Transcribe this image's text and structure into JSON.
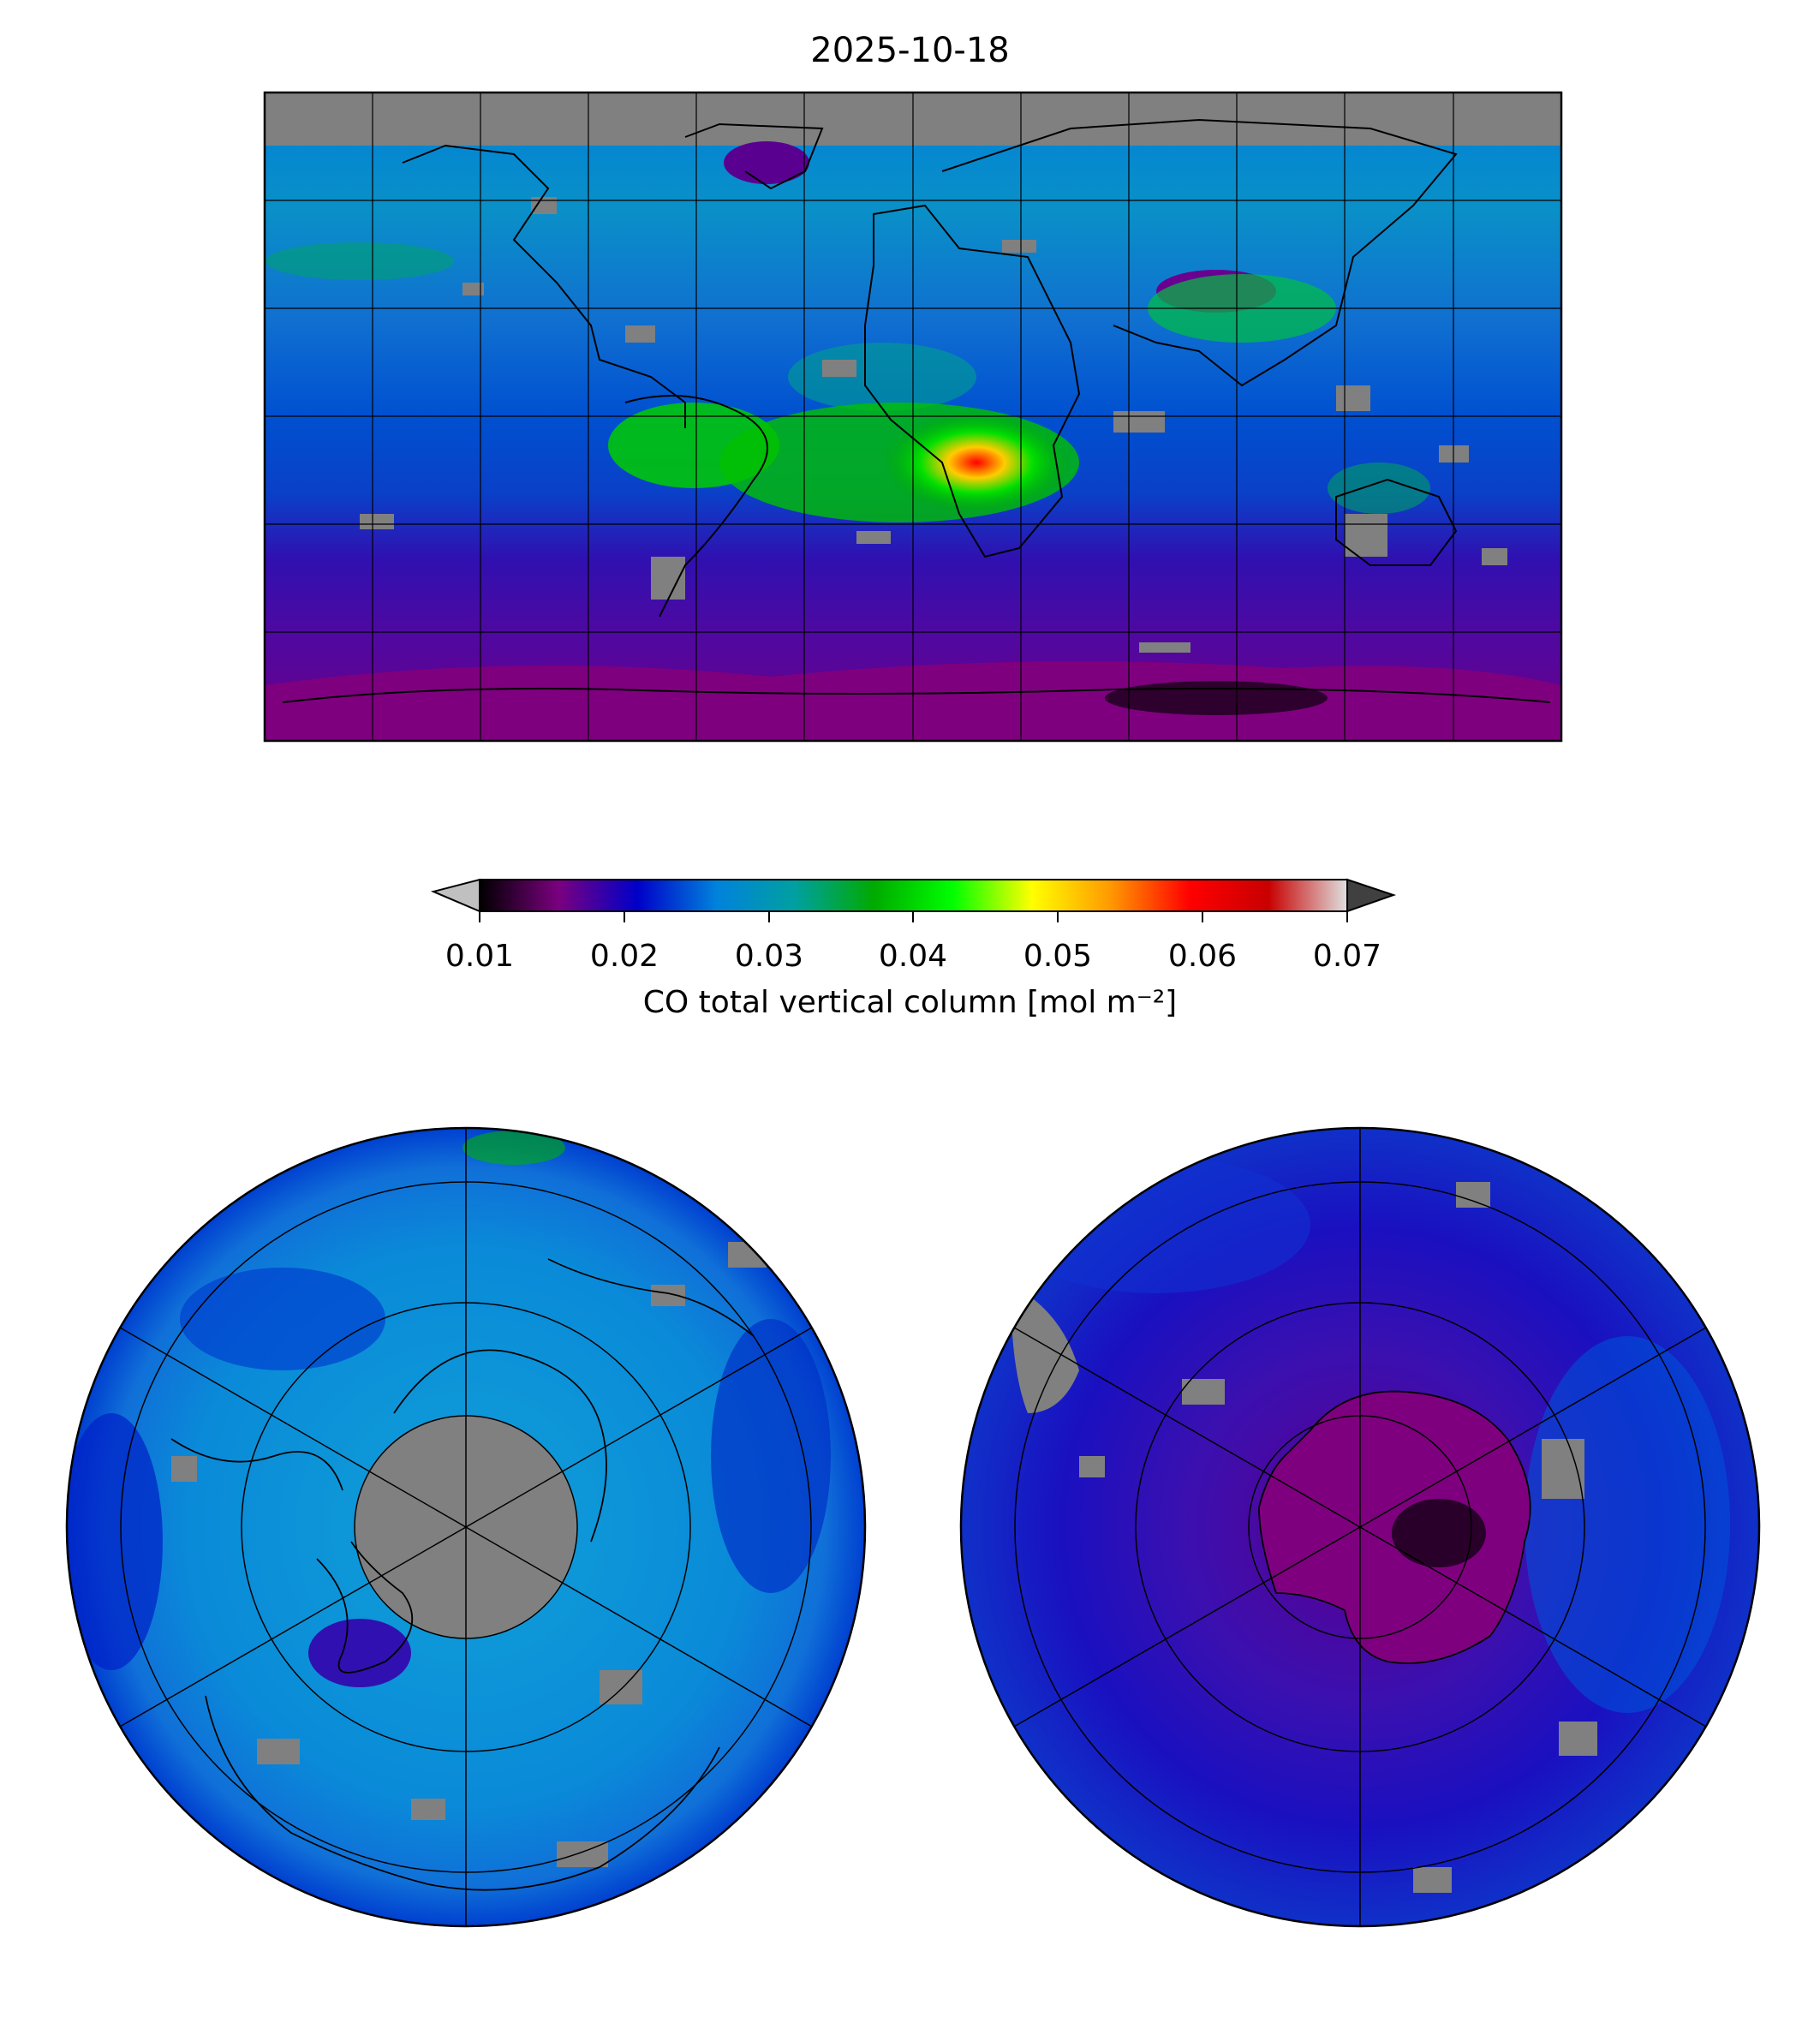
{
  "title": "2025-10-18",
  "colorbar": {
    "label": "CO total vertical column [mol m⁻²]",
    "ticks": [
      "0.01",
      "0.02",
      "0.03",
      "0.04",
      "0.05",
      "0.06",
      "0.07"
    ],
    "range": [
      0.01,
      0.07
    ],
    "extend": "both",
    "under_color": "#c0c0c0",
    "over_color": "#404040",
    "stops": [
      "#000000",
      "#7a007f",
      "#0000c8",
      "#0082dc",
      "#00a0a0",
      "#00aa00",
      "#00ff00",
      "#ffff00",
      "#ff9900",
      "#ff0000",
      "#c80000",
      "#e0e0e0"
    ]
  },
  "colors": {
    "no_data": "#808080",
    "background": "#0a8ee0",
    "southern_ocean": "#3818b0",
    "antarctica": "#7f007f"
  },
  "maps": {
    "global": {
      "projection": "PlateCarree"
    },
    "north_pole": {
      "projection": "NorthPolarStereo"
    },
    "south_pole": {
      "projection": "SouthPolarStereo"
    }
  }
}
